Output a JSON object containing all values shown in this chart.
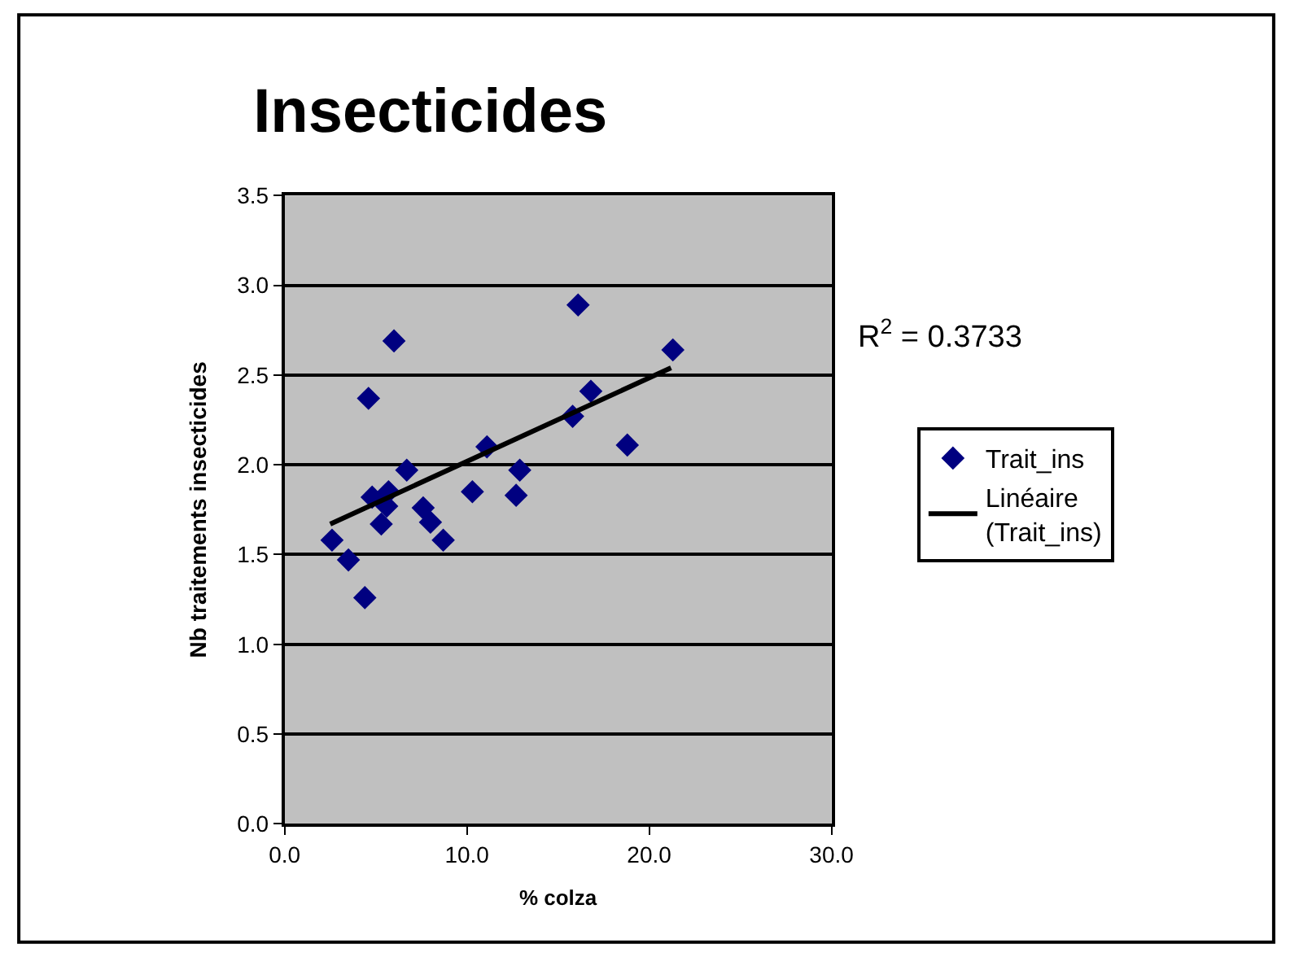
{
  "chart_data": {
    "type": "scatter",
    "title": "Insecticides",
    "xlabel": "% colza",
    "ylabel": "Nb traitements insecticides",
    "xlim": [
      0,
      30
    ],
    "xticks": [
      {
        "value": 0,
        "label": "0.0"
      },
      {
        "value": 10,
        "label": "10.0"
      },
      {
        "value": 20,
        "label": "20.0"
      },
      {
        "value": 30,
        "label": "30.0"
      }
    ],
    "ylim": [
      0,
      3.5
    ],
    "yticks": [
      {
        "value": 0,
        "label": "0.0"
      },
      {
        "value": 0.5,
        "label": "0.5"
      },
      {
        "value": 1,
        "label": "1.0"
      },
      {
        "value": 1.5,
        "label": "1.5"
      },
      {
        "value": 2,
        "label": "2.0"
      },
      {
        "value": 2.5,
        "label": "2.5"
      },
      {
        "value": 3,
        "label": "3.0"
      },
      {
        "value": 3.5,
        "label": "3.5"
      }
    ],
    "grid": "y",
    "legend": "right",
    "annotations": [
      "R$^{2}$ = 0.3733"
    ],
    "series": [
      {
        "name": "Trait_ins",
        "color": "#000080",
        "marker": "diamond",
        "x": [
          2.6,
          3.5,
          4.4,
          4.6,
          6.0,
          4.8,
          5.7,
          5.6,
          5.3,
          6.7,
          7.6,
          8.0,
          8.7,
          10.3,
          11.1,
          12.9,
          12.7,
          15.8,
          16.8,
          16.1,
          18.8,
          21.3
        ],
        "values": [
          1.58,
          1.47,
          1.26,
          2.37,
          2.69,
          1.82,
          1.85,
          1.77,
          1.67,
          1.97,
          1.76,
          1.68,
          1.58,
          1.85,
          2.1,
          1.97,
          1.83,
          2.27,
          2.41,
          2.89,
          2.11,
          2.64
        ]
      },
      {
        "name": "Linéaire\n(Trait_ins)",
        "type": "line",
        "color": "#000000",
        "line_style": "solid",
        "marker": "none",
        "x": [
          2.5,
          21.2
        ],
        "values": [
          1.67,
          2.54
        ]
      }
    ]
  }
}
